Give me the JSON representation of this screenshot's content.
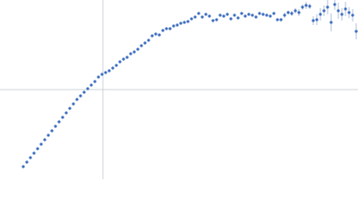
{
  "chart_data": {
    "type": "scatter",
    "color": "#3f6fbf",
    "xlim": [
      0,
      400
    ],
    "ylim": [
      0,
      200
    ],
    "x": [
      26,
      30,
      34,
      38,
      42,
      46,
      50,
      54,
      58,
      62,
      66,
      70,
      74,
      78,
      82,
      86,
      90,
      94,
      98,
      102,
      106,
      110,
      114,
      118,
      122,
      126,
      130,
      134,
      138,
      142,
      146,
      150,
      154,
      158,
      162,
      166,
      170,
      174,
      178,
      182,
      186,
      190,
      194,
      198,
      202,
      206,
      210,
      214,
      218,
      222,
      226,
      230,
      234,
      238,
      242,
      246,
      250,
      254,
      258,
      262,
      266,
      270,
      274,
      278,
      282,
      286,
      290,
      294,
      298,
      302,
      306,
      310,
      314,
      318,
      322,
      326,
      330,
      334,
      338,
      342,
      346,
      350,
      354,
      358,
      362,
      366,
      370,
      374,
      378,
      382,
      386,
      390,
      394,
      398
    ],
    "values": [
      14,
      19,
      24,
      29,
      34,
      39,
      44,
      49,
      54,
      59,
      64,
      69,
      74,
      79,
      84,
      89,
      93,
      97,
      101,
      105,
      109,
      114,
      117,
      119,
      121,
      124,
      127,
      131,
      134,
      136,
      140,
      142,
      145,
      149,
      152,
      155,
      160,
      162,
      161,
      166,
      168,
      168,
      171,
      172,
      174,
      175,
      176,
      179,
      181,
      185,
      181,
      184,
      182,
      177,
      178,
      183,
      182,
      184,
      179,
      183,
      180,
      185,
      182,
      184,
      183,
      181,
      185,
      184,
      183,
      182,
      185,
      178,
      178,
      183,
      186,
      185,
      188,
      186,
      192,
      194,
      193,
      177,
      178,
      184,
      188,
      192,
      175,
      195,
      188,
      184,
      190,
      186,
      183,
      165
    ],
    "errors": [
      0,
      0,
      0,
      0,
      0,
      0,
      0,
      0,
      0,
      0,
      0,
      0,
      0,
      0,
      0,
      0,
      0,
      0,
      0,
      0,
      0,
      0,
      0,
      0,
      0,
      0,
      0,
      0,
      0,
      0,
      0,
      0,
      0,
      0,
      0,
      0,
      0,
      0,
      0,
      0,
      0,
      0,
      0,
      0,
      0,
      0,
      0,
      0,
      0,
      0,
      0,
      0,
      0,
      0,
      0,
      0,
      1,
      1,
      1,
      1,
      1,
      1,
      1,
      1,
      1,
      1,
      1,
      1,
      1,
      1,
      1,
      1,
      2,
      3,
      2,
      3,
      3,
      4,
      3,
      4,
      3,
      5,
      6,
      7,
      6,
      8,
      10,
      6,
      9,
      7,
      8,
      6,
      7,
      9
    ]
  }
}
